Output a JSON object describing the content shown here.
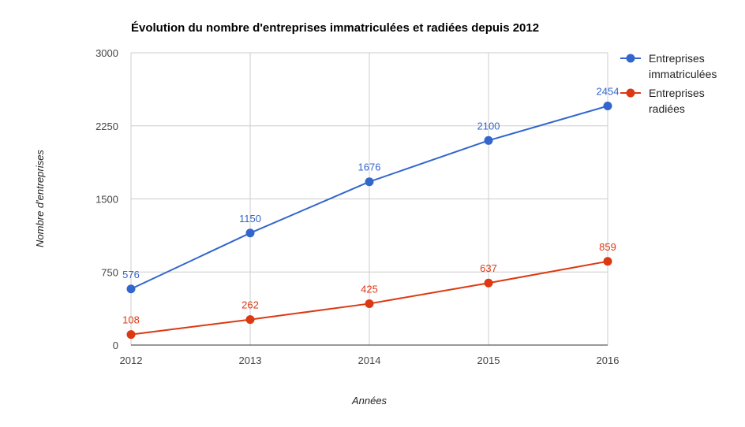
{
  "chart_data": {
    "type": "line",
    "title": "Évolution du nombre d'entreprises immatriculées et radiées depuis 2012",
    "xlabel": "Années",
    "ylabel": "Nombre d'entreprises",
    "categories": [
      "2012",
      "2013",
      "2014",
      "2015",
      "2016"
    ],
    "ylim": [
      0,
      3000
    ],
    "yticks": [
      "0",
      "750",
      "1500",
      "2250",
      "3000"
    ],
    "grid": true,
    "legend_position": "right",
    "series": [
      {
        "name": "Entreprises immatriculées",
        "legend_lines": [
          "Entreprises",
          "immatriculées"
        ],
        "color": "#3366cc",
        "values": [
          576,
          1150,
          1676,
          2100,
          2454
        ]
      },
      {
        "name": "Entreprises radiées",
        "legend_lines": [
          "Entreprises",
          "radiées"
        ],
        "color": "#dc3912",
        "values": [
          108,
          262,
          425,
          637,
          859
        ]
      }
    ]
  }
}
